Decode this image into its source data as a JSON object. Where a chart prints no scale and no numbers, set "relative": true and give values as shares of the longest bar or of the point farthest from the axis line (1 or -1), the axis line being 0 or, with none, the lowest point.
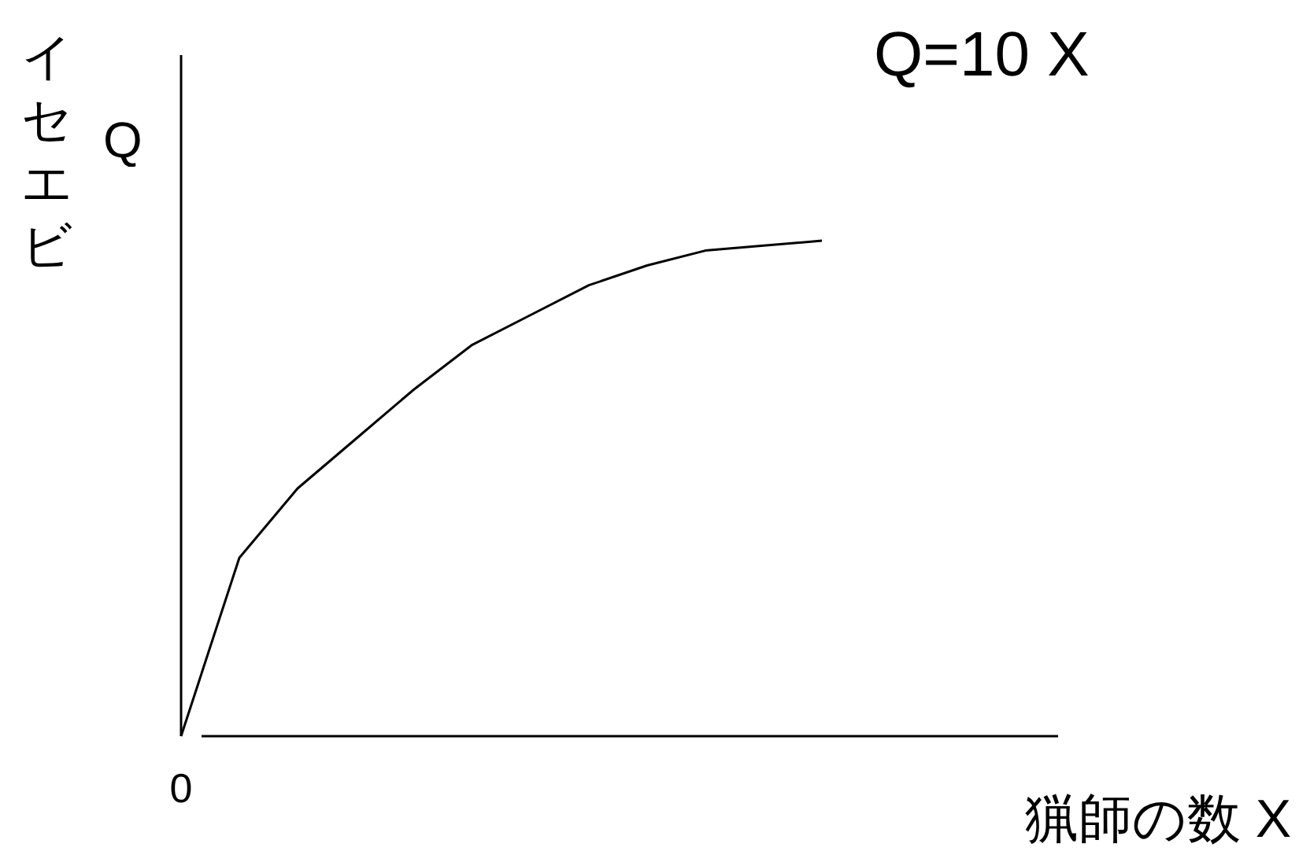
{
  "chart_data": {
    "type": "line",
    "title": "Q=10 X",
    "xlabel": "猟師の数 X",
    "ylabel": "イセエビ Q",
    "relative": true,
    "color": "#000000",
    "annotations": [
      "0"
    ],
    "categories": [
      null,
      null,
      null,
      null,
      null,
      null,
      null,
      null,
      null,
      null,
      null,
      null
    ],
    "values": [
      0,
      0.36,
      0.5,
      0.6,
      0.7,
      0.79,
      0.85,
      0.91,
      0.95,
      0.98,
      0.99,
      1
    ]
  }
}
